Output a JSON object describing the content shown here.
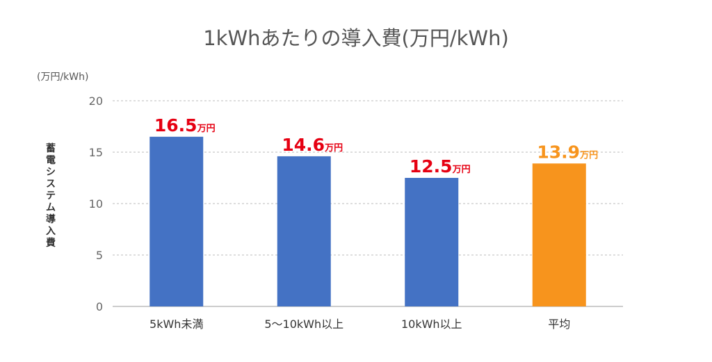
{
  "chart_data": {
    "type": "bar",
    "title": "1kWhあたりの導入費(万円/kWh)",
    "unit_label": "(万円/kWh)",
    "ylabel": "蓄電システム導入費",
    "xlabel": "",
    "categories": [
      "5kWh未満",
      "5～10kWh以上",
      "10kWh以上",
      "平均"
    ],
    "values": [
      16.5,
      14.6,
      12.5,
      13.9
    ],
    "value_labels": [
      "16.5",
      "14.6",
      "12.5",
      "13.9"
    ],
    "value_suffix": "万円",
    "ylim": [
      0,
      20
    ],
    "yticks": [
      0,
      5,
      10,
      15,
      20
    ],
    "grid": true,
    "legend": "none",
    "colors": {
      "bar": "#4472c4",
      "bar_highlight": "#f7941d",
      "label": "#e60012",
      "label_highlight": "#f7941d",
      "grid": "#bbbbbb",
      "axis": "#999999"
    },
    "highlight_index": 3
  }
}
